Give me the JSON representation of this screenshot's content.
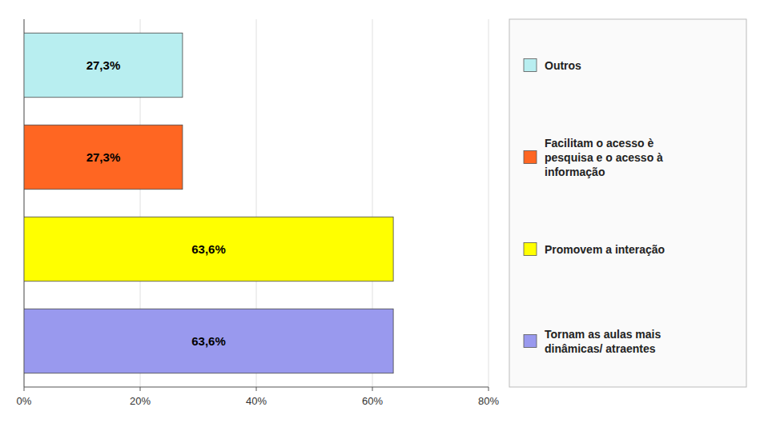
{
  "chart_data": {
    "type": "bar",
    "orientation": "horizontal",
    "categories": [
      "Tornam as aulas mais\ndinâmicas/ atraentes",
      "Promovem a interação",
      "Facilitam o acesso è\npesquisa e o acesso à\ninformação",
      "Outros"
    ],
    "values": [
      63.6,
      63.6,
      27.3,
      27.3
    ],
    "value_labels": [
      "63,6%",
      "63,6%",
      "27,3%",
      "27,3%"
    ],
    "colors": [
      "#9999ee",
      "#ffff00",
      "#ff6622",
      "#b8eef0"
    ],
    "xlim": [
      0,
      80
    ],
    "xticks": [
      {
        "value": 0,
        "label": "0%"
      },
      {
        "value": 20,
        "label": "20%"
      },
      {
        "value": 40,
        "label": "40%"
      },
      {
        "value": 60,
        "label": "60%"
      },
      {
        "value": 80,
        "label": "80%"
      }
    ],
    "grid": true,
    "legend": "right",
    "data_labels": true,
    "tick_labels": "x"
  }
}
